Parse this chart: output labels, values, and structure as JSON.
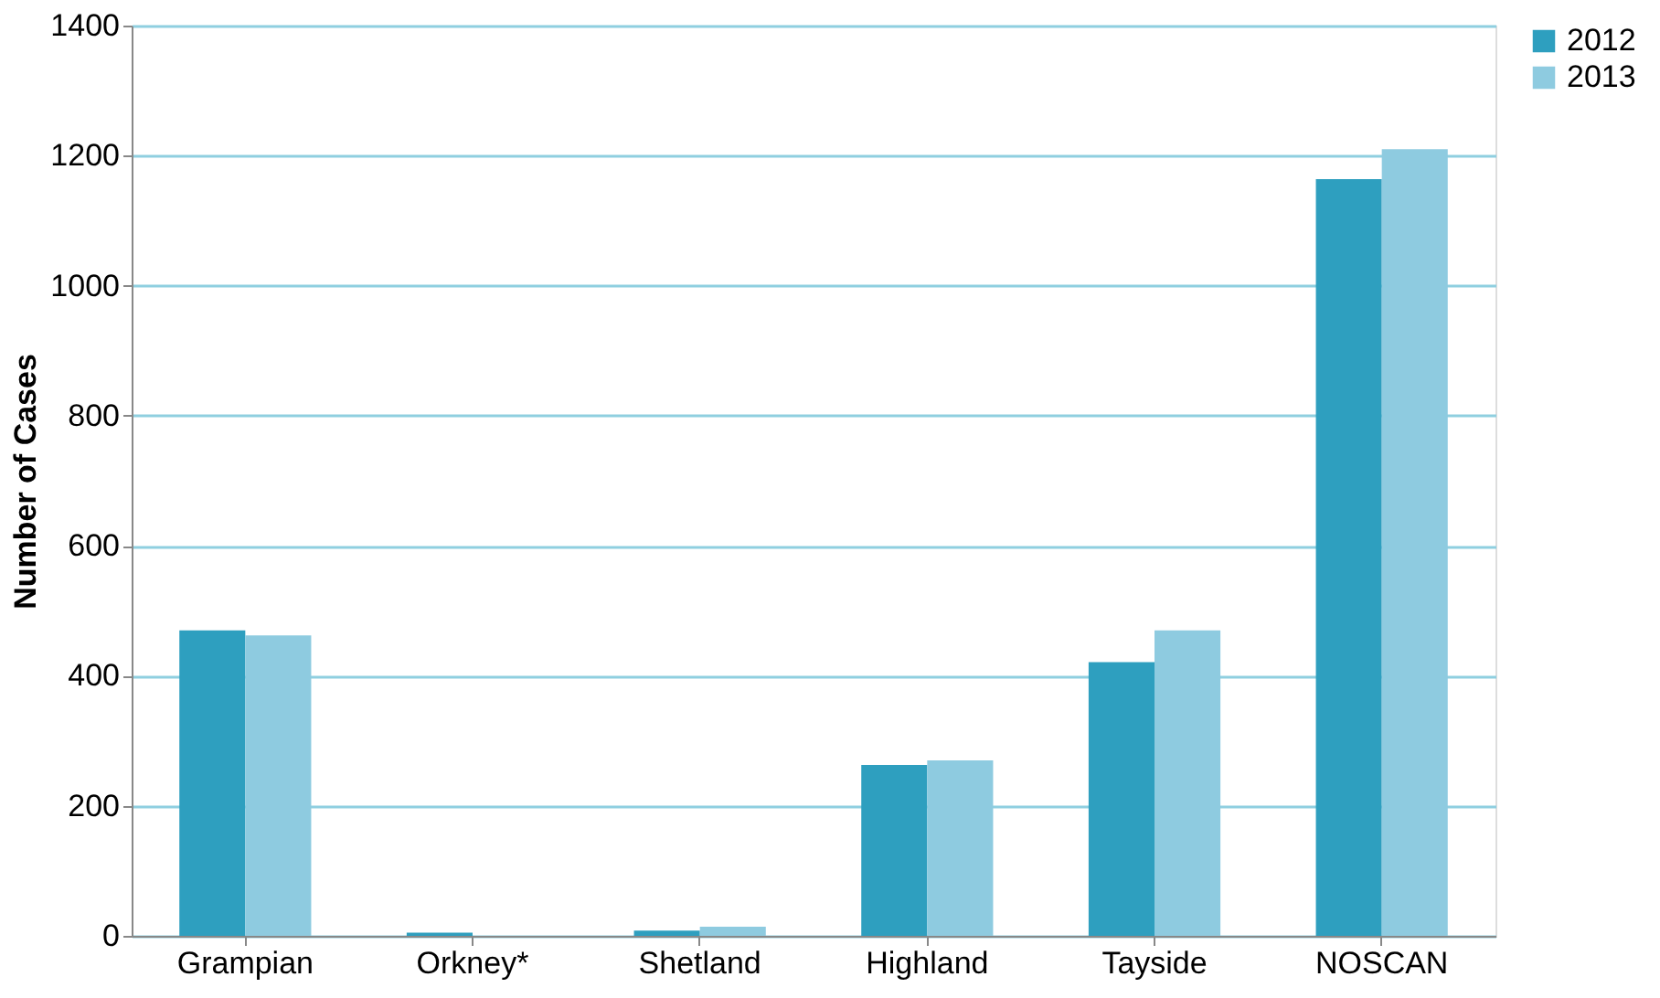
{
  "chart_data": {
    "type": "bar",
    "ylabel": "Number of Cases",
    "categories": [
      "Grampian",
      "Orkney*",
      "Shetland",
      "Highland",
      "Tayside",
      "NOSCAN"
    ],
    "series": [
      {
        "name": "2012",
        "color": "#2e9fbf",
        "values": [
          470,
          5,
          8,
          263,
          421,
          1164
        ]
      },
      {
        "name": "2013",
        "color": "#8ecbe0",
        "values": [
          462,
          0,
          14,
          270,
          470,
          1210
        ]
      }
    ],
    "ylim": [
      0,
      1400
    ],
    "yticks": [
      0,
      200,
      400,
      600,
      800,
      1000,
      1200,
      1400
    ],
    "grid": "y",
    "legend": "right"
  }
}
